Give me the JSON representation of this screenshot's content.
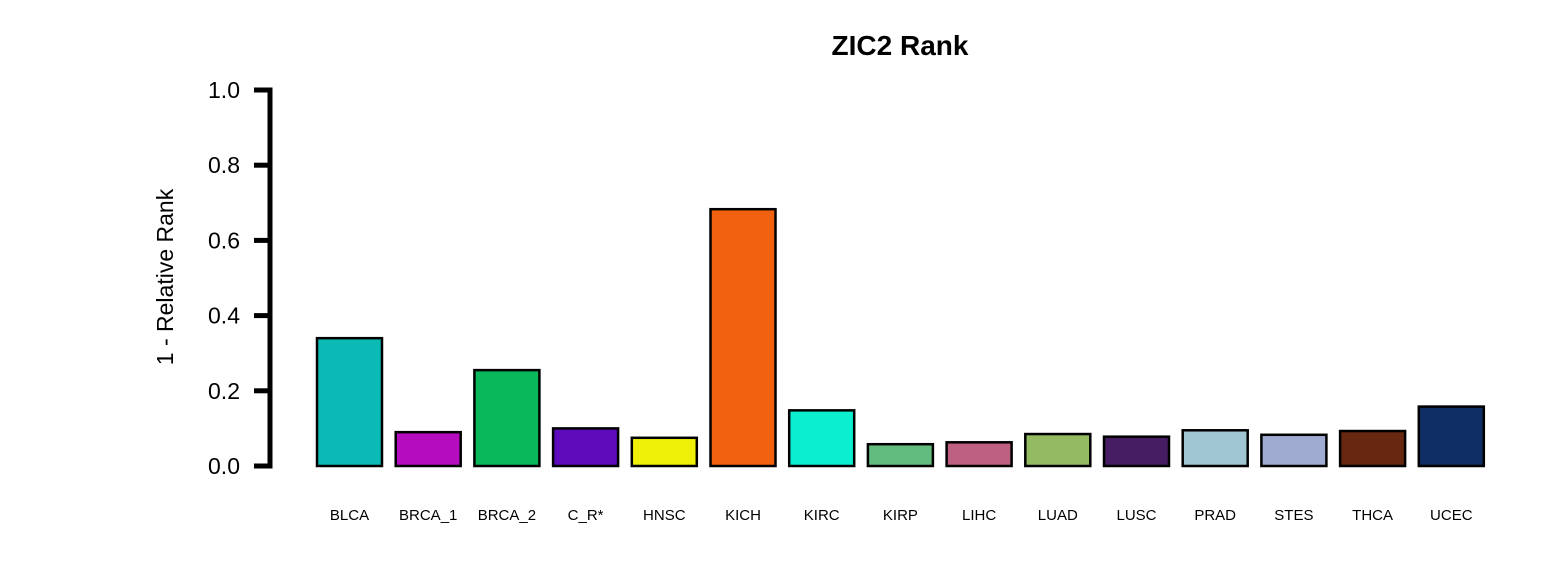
{
  "chart_data": {
    "type": "bar",
    "title": "ZIC2 Rank",
    "xlabel": "",
    "ylabel": "1 - Relative Rank",
    "ylim": [
      0,
      1.0
    ],
    "yticks": [
      "0.0",
      "0.2",
      "0.4",
      "0.6",
      "0.8",
      "1.0"
    ],
    "grid": false,
    "categories": [
      "BLCA",
      "BRCA_1",
      "BRCA_2",
      "C_R*",
      "HNSC",
      "KICH",
      "KIRC",
      "KIRP",
      "LIHC",
      "LUAD",
      "LUSC",
      "PRAD",
      "STES",
      "THCA",
      "UCEC"
    ],
    "values": [
      0.34,
      0.09,
      0.255,
      0.1,
      0.075,
      0.683,
      0.148,
      0.058,
      0.063,
      0.085,
      0.078,
      0.095,
      0.083,
      0.093,
      0.158
    ],
    "colors": [
      "#0abab5",
      "#b40cbe",
      "#09b85b",
      "#5e0bbb",
      "#eef008",
      "#f26110",
      "#0ceed0",
      "#62bb7f",
      "#be6082",
      "#95bb62",
      "#461c62",
      "#a0c5d3",
      "#9fabd0",
      "#672710",
      "#0f2f64"
    ]
  }
}
